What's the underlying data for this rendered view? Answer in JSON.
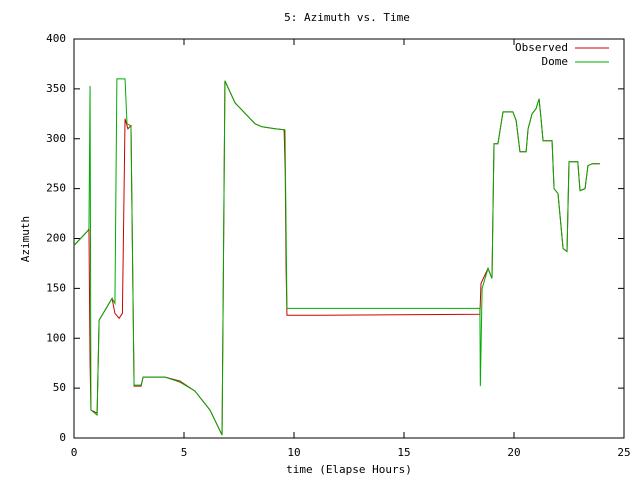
{
  "chart_data": {
    "type": "line",
    "title": "5: Azimuth vs. Time",
    "x_label": "time (Elapse Hours)",
    "y_label": "Azimuth",
    "xlim": [
      0,
      25
    ],
    "xticks": [
      0,
      5,
      10,
      15,
      20,
      25
    ],
    "ylim": [
      0,
      400
    ],
    "yticks": [
      0,
      50,
      100,
      150,
      200,
      250,
      300,
      350,
      400
    ],
    "legend": "top-right",
    "series": [
      {
        "name": "Observed",
        "color": "#cc0000",
        "x": [
          0,
          0.64,
          0.68,
          0.73,
          0.77,
          1.05,
          1.14,
          1.73,
          1.86,
          2.05,
          2.2,
          2.32,
          2.45,
          2.59,
          2.73,
          3.05,
          3.14,
          4.14,
          4.82,
          5.5,
          6.18,
          6.73,
          6.86,
          7.32,
          8.23,
          8.55,
          9.14,
          9.55,
          9.6,
          9.64,
          9.68,
          11.2,
          18.45,
          18.5,
          18.82,
          19.0,
          19.09,
          19.27,
          19.5,
          19.95,
          20.1,
          20.27,
          20.55,
          20.64,
          20.82,
          21.0,
          21.14,
          21.23,
          21.32,
          21.73,
          21.82,
          22.0,
          22.23,
          22.41,
          22.5,
          22.9,
          23.0,
          23.23,
          23.36,
          23.55,
          23.9
        ],
        "values": [
          193,
          208,
          210,
          75,
          28,
          25,
          118,
          140,
          125,
          120,
          125,
          320,
          310,
          313,
          52,
          52,
          61,
          61,
          57,
          47,
          28,
          3,
          358,
          336,
          315,
          312,
          310,
          309,
          268,
          170,
          123,
          123,
          124,
          155,
          170,
          160,
          295,
          295,
          327,
          327,
          318,
          287,
          287,
          310,
          325,
          330,
          340,
          320,
          298,
          298,
          250,
          245,
          190,
          187,
          277,
          277,
          248,
          250,
          273,
          275,
          275
        ]
      },
      {
        "name": "Dome",
        "color": "#00aa00",
        "x": [
          0,
          0.64,
          0.68,
          0.73,
          0.77,
          1.05,
          1.14,
          1.73,
          1.86,
          1.95,
          2.32,
          2.41,
          2.59,
          2.73,
          3.05,
          3.14,
          4.14,
          4.82,
          5.5,
          6.18,
          6.73,
          6.86,
          7.32,
          8.23,
          8.55,
          9.14,
          9.59,
          9.68,
          18.45,
          18.47,
          18.55,
          18.82,
          19.0,
          19.09,
          19.27,
          19.5,
          19.95,
          20.1,
          20.27,
          20.55,
          20.64,
          20.82,
          21.0,
          21.14,
          21.23,
          21.32,
          21.73,
          21.82,
          22.0,
          22.23,
          22.41,
          22.5,
          22.9,
          23.0,
          23.23,
          23.36,
          23.55,
          23.9
        ],
        "values": [
          193,
          208,
          210,
          353,
          28,
          23,
          118,
          140,
          135,
          360,
          360,
          315,
          313,
          53,
          53,
          61,
          61,
          56,
          47,
          28,
          3,
          358,
          336,
          315,
          312,
          310,
          309,
          130,
          130,
          52,
          150,
          170,
          160,
          295,
          295,
          327,
          327,
          318,
          287,
          287,
          310,
          325,
          330,
          340,
          320,
          298,
          298,
          250,
          245,
          190,
          187,
          277,
          277,
          248,
          250,
          273,
          275,
          275
        ]
      }
    ]
  }
}
